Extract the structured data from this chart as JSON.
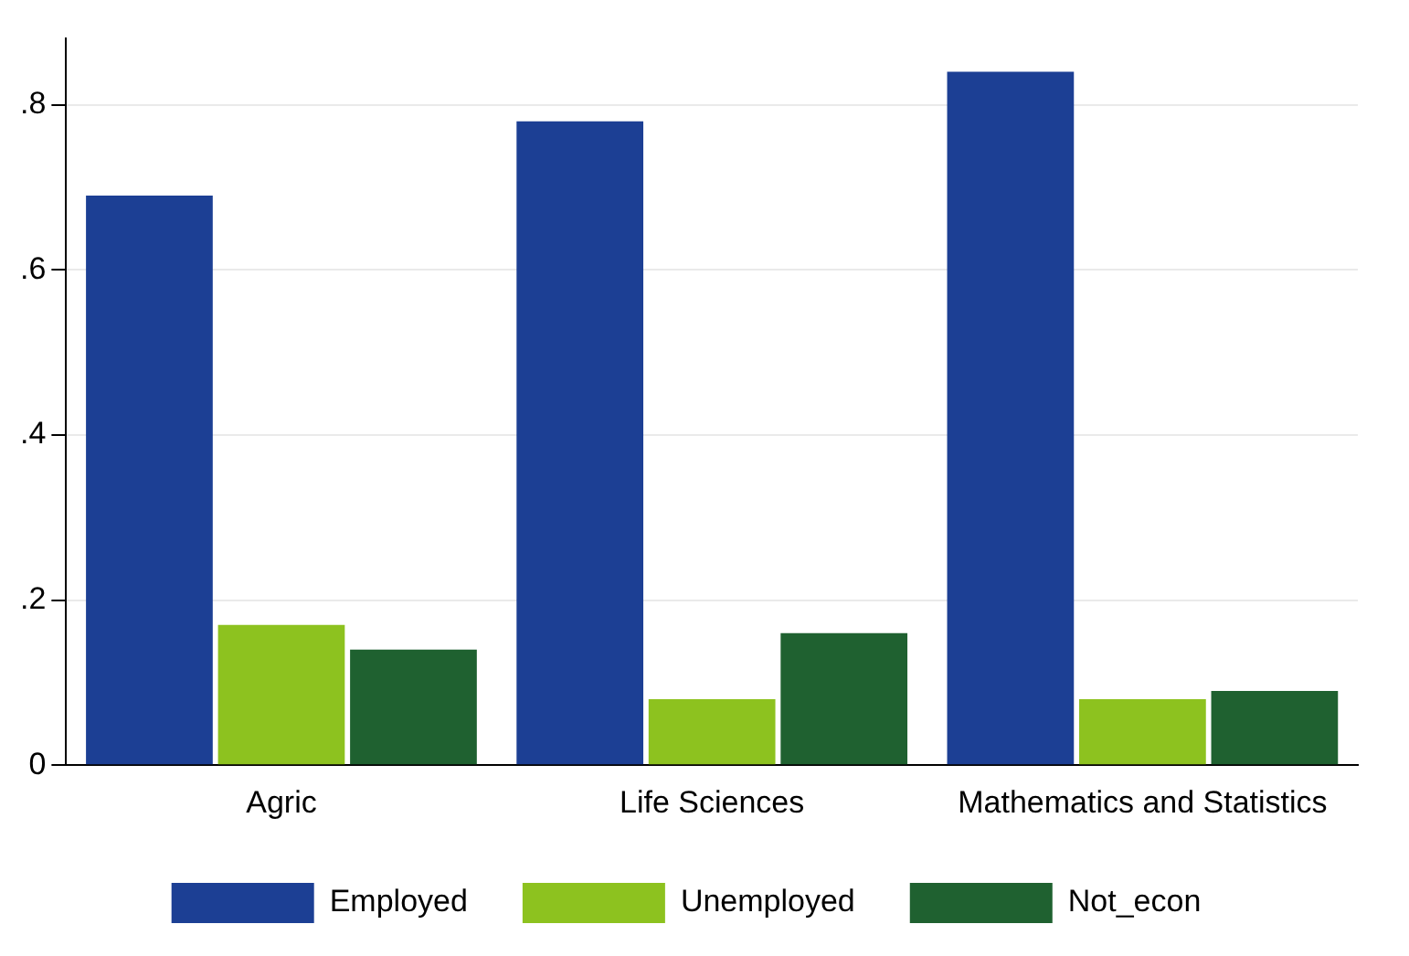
{
  "chart_data": {
    "type": "bar",
    "categories": [
      "Agric",
      "Life Sciences",
      "Mathematics and Statistics"
    ],
    "series": [
      {
        "name": "Employed",
        "color": "#1c3f94",
        "values": [
          0.69,
          0.78,
          0.84
        ]
      },
      {
        "name": "Unemployed",
        "color": "#8dc21f",
        "values": [
          0.17,
          0.08,
          0.08
        ]
      },
      {
        "name": "Not_econ",
        "color": "#1f6130",
        "values": [
          0.14,
          0.16,
          0.09
        ]
      }
    ],
    "ylim": [
      0,
      0.88
    ],
    "yticks": [
      {
        "value": 0,
        "label": "0"
      },
      {
        "value": 0.2,
        "label": ".2"
      },
      {
        "value": 0.4,
        "label": ".4"
      },
      {
        "value": 0.6,
        "label": ".6"
      },
      {
        "value": 0.8,
        "label": ".8"
      }
    ],
    "grid": "y",
    "legend": "bottom"
  }
}
